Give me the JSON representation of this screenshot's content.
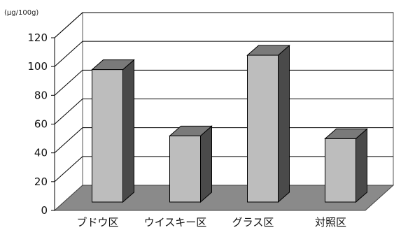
{
  "chart_data": {
    "type": "bar",
    "style": "3d",
    "unit_label": "(μg/100g)",
    "categories": [
      "ブドウ区",
      "ウイスキー区",
      "グラス区",
      "対照区"
    ],
    "series": [
      {
        "values": [
          92,
          46,
          102,
          44
        ]
      }
    ],
    "ylim": [
      0,
      120
    ],
    "yticks": [
      "0",
      "20",
      "40",
      "60",
      "80",
      "100",
      "120"
    ],
    "grid": true,
    "legend": "none",
    "colors": {
      "bar_front": "#bdbdbd",
      "bar_top": "#7a7a7a",
      "bar_side": "#4a4a4a",
      "floor": "#8a8a8a",
      "wall": "#ffffff",
      "gridline": "#000000",
      "text": "#111111"
    }
  }
}
